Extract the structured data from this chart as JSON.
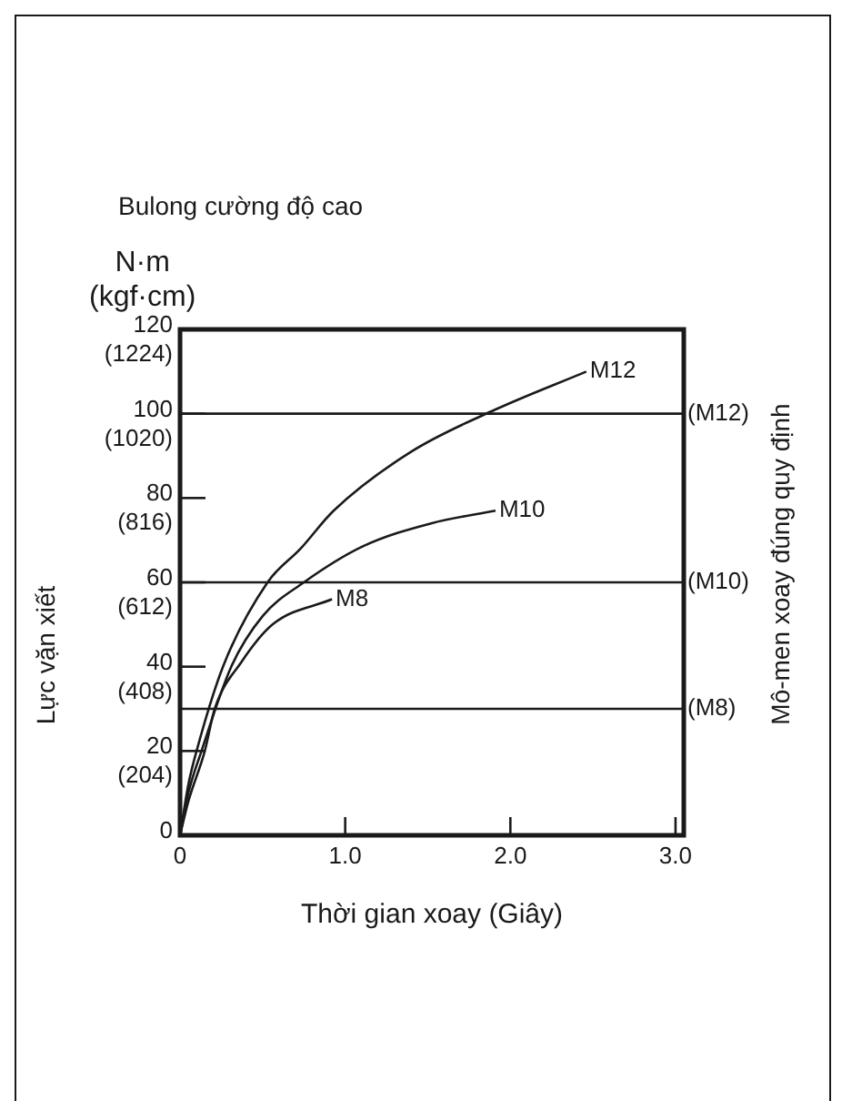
{
  "chart_data": {
    "type": "line",
    "title": "Bulong cường độ cao",
    "xlabel": "Thời gian xoay (Giây)",
    "y2label": "Lực vặn xiết",
    "annotations": [
      "N·m\n(kgf·cm)",
      "Mô-men xoay đúng quy định",
      {
        "text": "M12",
        "x": 2.46,
        "y": 110
      },
      {
        "text": "M10",
        "x": 1.91,
        "y": 77
      },
      {
        "text": "M8",
        "x": 0.92,
        "y": 56
      }
    ],
    "series": [
      {
        "color": "#1a1a1a",
        "x": [
          0,
          0.05,
          0.1,
          0.26,
          0.53,
          0.73,
          0.93,
          1.4,
          1.91,
          2.46
        ],
        "values": [
          0,
          12,
          20,
          40,
          60,
          68,
          77,
          91,
          101,
          110
        ]
      },
      {
        "color": "#1a1a1a",
        "x": [
          0,
          0.05,
          0.13,
          0.31,
          0.5,
          0.75,
          1.11,
          1.52,
          1.91
        ],
        "values": [
          0,
          10,
          20,
          40,
          52,
          60,
          68.6,
          74,
          77
        ]
      },
      {
        "color": "#1a1a1a",
        "x": [
          0,
          0.05,
          0.15,
          0.21,
          0.37,
          0.56,
          0.92
        ],
        "values": [
          0,
          8,
          20,
          30,
          41,
          50,
          56
        ]
      }
    ],
    "xlim": [
      0,
      3.05
    ],
    "xticks": [
      0,
      {
        "value": 1,
        "label": "1.0"
      },
      {
        "value": 2,
        "label": "2.0"
      },
      {
        "value": 3,
        "label": "3.0"
      }
    ],
    "ylim": [
      0,
      120
    ],
    "yticks": [
      0,
      20,
      40,
      60,
      80,
      100,
      120
    ],
    "y2lim": [
      0,
      1224
    ],
    "y2ticks": [
      {
        "value": 204,
        "label": "(204)"
      },
      {
        "value": 408,
        "label": "(408)"
      },
      {
        "value": 612,
        "label": "(612)"
      },
      {
        "value": 816,
        "label": "(816)"
      },
      {
        "value": 1020,
        "label": "(1020)"
      },
      {
        "value": 1224,
        "label": "(1224)"
      }
    ],
    "ref_lines": [
      {
        "axis": "y",
        "value": 100,
        "label": "(M12)",
        "color": "#1a1a1a"
      },
      {
        "axis": "y",
        "value": 60,
        "label": "(M10)",
        "color": "#1a1a1a"
      },
      {
        "axis": "y",
        "value": 30,
        "label": "(M8)",
        "color": "#1a1a1a"
      }
    ],
    "grid": false,
    "legend": false,
    "marker": "none",
    "line_style": "solid"
  }
}
